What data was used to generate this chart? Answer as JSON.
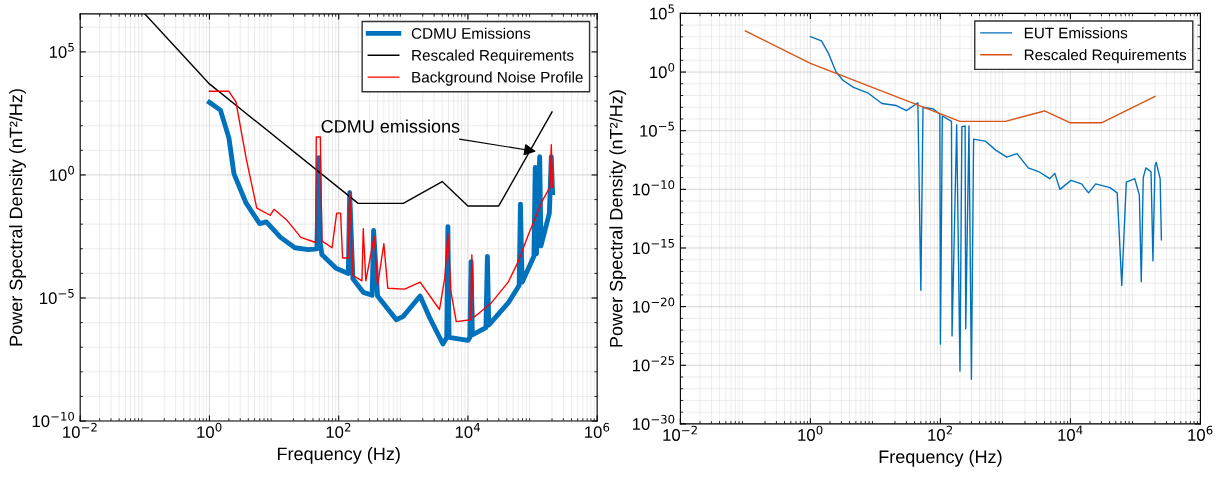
{
  "chart_data": [
    {
      "type": "line",
      "xlabel": "Frequency (Hz)",
      "ylabel": "Power Spectral Density (nT²/Hz)",
      "log": "xy",
      "grid": true,
      "legend": "top right",
      "xlim": [
        0.01,
        1000000
      ],
      "ylim": [
        1e-10,
        3500000
      ],
      "xticks": [
        {
          "value": 0.01,
          "label": "10$^{−2}$"
        },
        {
          "value": 1,
          "label": "10$^{0}$"
        },
        {
          "value": 100,
          "label": "10$^{2}$"
        },
        {
          "value": 10000,
          "label": "10$^{4}$"
        },
        {
          "value": 1000000,
          "label": "10$^{6}$"
        }
      ],
      "yticks": [
        {
          "value": 1e-10,
          "label": "10$^{−10}$"
        },
        {
          "value": 1e-05,
          "label": "10$^{−5}$"
        },
        {
          "value": 1,
          "label": "10$^{0}$"
        },
        {
          "value": 100000,
          "label": "10$^{5}$"
        }
      ],
      "annotations": [
        {
          "text": "CDMU emissions",
          "x": 113000,
          "y": 9
        }
      ],
      "series": [
        {
          "name": "CDMU Emissions",
          "color": "#0072bd",
          "x": [
            1,
            1.48,
            2.0,
            2.4,
            3.7,
            6.0,
            7.6,
            12.6,
            21,
            34,
            46,
            49,
            52,
            55,
            91,
            141,
            148,
            166,
            240,
            330,
            347,
            400,
            780,
            1000,
            1820,
            2500,
            4100,
            4700,
            4900,
            5100,
            10000,
            10700,
            11200,
            11700,
            19000,
            20000,
            21000,
            42000,
            62000,
            65000,
            69000,
            105000,
            110000,
            115000,
            129000,
            135000,
            182000,
            195000,
            204000
          ],
          "values": [
            890,
            430,
            32,
            1.1,
            0.071,
            0.0105,
            0.0123,
            0.0029,
            0.0011,
            0.00093,
            0.001,
            5.0,
            0.0016,
            0.00058,
            0.00016,
            0.0001,
            0.19,
            6e-05,
            1.7e-05,
            1.3e-05,
            0.0055,
            1.2e-05,
            1.3e-06,
            1.8e-06,
            1.2e-05,
            1.8e-06,
            1.35e-07,
            2.5e-07,
            0.0079,
            2.5e-07,
            1.9e-07,
            2.5e-07,
            0.0003,
            3.2e-07,
            6.3e-07,
            0.00049,
            7.9e-07,
            6.3e-06,
            3.2e-05,
            0.065,
            4.4e-05,
            0.0005,
            2.0,
            0.00063,
            5.5,
            0.0013,
            0.028,
            5.5,
            0.19
          ]
        },
        {
          "name": "Rescaled Requirements",
          "color": "#000000",
          "x": [
            0.1,
            1,
            200,
            1000,
            4000,
            10000,
            30000,
            200000
          ],
          "values": [
            3500000,
            5000,
            0.07,
            0.07,
            0.54,
            0.055,
            0.055,
            360
          ]
        },
        {
          "name": "Background Noise Profile",
          "color": "#ff0000",
          "x": [
            1,
            2.0,
            2.57,
            3.7,
            5.4,
            8.7,
            10,
            16,
            26,
            44,
            45,
            52,
            55,
            79,
            93,
            107,
            115,
            141,
            148,
            166,
            229,
            240,
            263,
            355,
            400,
            500,
            575,
            1050,
            1820,
            3630,
            4370,
            4900,
            5500,
            6600,
            11000,
            11500,
            12300,
            23000,
            42000,
            60000,
            87000,
            145000,
            186000,
            195000,
            204000
          ],
          "values": [
            2500,
            2500,
            930,
            4.7,
            0.045,
            0.023,
            0.04,
            0.014,
            0.0029,
            0.0018,
            35,
            35,
            0.0021,
            0.0011,
            0.028,
            0.028,
            0.00042,
            0.00042,
            0.22,
            8.3e-05,
            5e-05,
            0.0065,
            5e-05,
            0.0032,
            3.2e-05,
            0.0016,
            2.5e-05,
            2.3e-05,
            4.4e-05,
            3.4e-06,
            6.3e-05,
            0.004,
            1.6e-05,
            1.1e-06,
            1.3e-06,
            0.00056,
            1.6e-06,
            6.3e-06,
            4.4e-05,
            0.0003,
            0.004,
            0.1,
            0.32,
            17,
            0.32
          ]
        }
      ]
    },
    {
      "type": "line",
      "xlabel": "Frequency (Hz)",
      "ylabel": "Power Spectral Density (nT²/Hz)",
      "log": "xy",
      "grid": true,
      "legend": "top right",
      "xlim": [
        0.01,
        1000000
      ],
      "ylim": [
        1e-30,
        100000
      ],
      "xticks": [
        {
          "value": 0.01,
          "label": "10$^{−2}$"
        },
        {
          "value": 1,
          "label": "10$^{0}$"
        },
        {
          "value": 100,
          "label": "10$^{2}$"
        },
        {
          "value": 10000,
          "label": "10$^{4}$"
        },
        {
          "value": 1000000,
          "label": "10$^{6}$"
        }
      ],
      "yticks": [
        {
          "value": 1e-30,
          "label": "10$^{−30}$"
        },
        {
          "value": 1e-25,
          "label": "10$^{−25}$"
        },
        {
          "value": 1e-20,
          "label": "10$^{−20}$"
        },
        {
          "value": 1e-15,
          "label": "10$^{−15}$"
        },
        {
          "value": 1e-10,
          "label": "10$^{−10}$"
        },
        {
          "value": 1e-05,
          "label": "10$^{−5}$"
        },
        {
          "value": 1,
          "label": "10$^{0}$"
        },
        {
          "value": 100000,
          "label": "10$^{5}$"
        }
      ],
      "series": [
        {
          "name": "EUT Emissions",
          "color": "#0072bd",
          "x": [
            1,
            1.48,
            1.9,
            2.45,
            3.16,
            4.6,
            7.6,
            12.6,
            21,
            30,
            45,
            50,
            54,
            78,
            98,
            100,
            107,
            148,
            151,
            178,
            200,
            214,
            240,
            245,
            275,
            300,
            324,
            490,
            710,
            1050,
            1510,
            2240,
            3240,
            4800,
            5750,
            6900,
            10200,
            14800,
            19000,
            24500,
            40700,
            52500,
            61700,
            72400,
            97700,
            115000,
            123000,
            132000,
            145000,
            174000,
            186000,
            200000,
            209000,
            240000,
            251000
          ],
          "values": [
            1050,
            450,
            39,
            1.15,
            0.2,
            0.049,
            0.017,
            0.0021,
            0.0014,
            0.00051,
            0.0024,
            2.5e-19,
            0.001,
            0.00072,
            0.00025,
            6.3e-24,
            0.00018,
            6.2e-05,
            3.2e-23,
            3.1e-05,
            3.2e-26,
            2.2e-05,
            2.5e-05,
            1.3e-22,
            2.5e-05,
            6.3e-27,
            1.9e-06,
            1.3e-06,
            2.2e-07,
            5.5e-08,
            1.1e-07,
            6.8e-09,
            3.3e-09,
            8.1e-10,
            2.3e-09,
            1e-10,
            5.8e-10,
            2.9e-10,
            5e-11,
            2.9e-10,
            1.4e-10,
            5e-11,
            6.3e-19,
            4.1e-10,
            8.1e-10,
            3.2e-11,
            1.3e-18,
            1e-09,
            6.8e-09,
            3.2e-09,
            7.9e-17,
            1e-08,
            2e-08,
            8.1e-10,
            5e-15
          ]
        },
        {
          "name": "Rescaled Requirements",
          "color": "#d95319",
          "x": [
            0.1,
            1,
            200,
            1000,
            4000,
            10000,
            30000,
            200000
          ],
          "values": [
            3200,
            5.4,
            6.2e-05,
            6.2e-05,
            0.00048,
            4.7e-05,
            4.7e-05,
            0.0085
          ]
        }
      ]
    }
  ]
}
